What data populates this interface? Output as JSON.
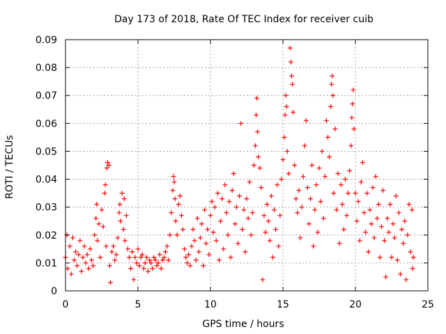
{
  "chart_data": {
    "type": "scatter",
    "title": "Day 173 of 2018, Rate Of TEC Index for receiver cuib",
    "xlabel": "GPS time / hours",
    "ylabel": "ROTI / TECUs",
    "xlim": [
      0,
      25
    ],
    "ylim": [
      0,
      0.09
    ],
    "xticks": [
      0,
      5,
      10,
      15,
      20,
      25
    ],
    "yticks": [
      0,
      0.01,
      0.02,
      0.03,
      0.04,
      0.05,
      0.06,
      0.07,
      0.08,
      0.09
    ],
    "xtick_labels": [
      "0",
      "5",
      "10",
      "15",
      "20",
      "25"
    ],
    "ytick_labels": [
      "0",
      "0.01",
      "0.02",
      "0.03",
      "0.04",
      "0.05",
      "0.06",
      "0.07",
      "0.08",
      "0.09"
    ],
    "grid": true,
    "marker": "+",
    "series": [
      {
        "name": "ROTI",
        "color": "#ff0000",
        "points": [
          [
            0.0,
            0.012
          ],
          [
            0.1,
            0.02
          ],
          [
            0.15,
            0.008
          ],
          [
            0.3,
            0.016
          ],
          [
            0.4,
            0.006
          ],
          [
            0.5,
            0.019
          ],
          [
            0.6,
            0.011
          ],
          [
            0.7,
            0.014
          ],
          [
            0.8,
            0.009
          ],
          [
            0.9,
            0.013
          ],
          [
            1.0,
            0.018
          ],
          [
            1.1,
            0.007
          ],
          [
            1.2,
            0.012
          ],
          [
            1.3,
            0.016
          ],
          [
            1.4,
            0.01
          ],
          [
            1.5,
            0.013
          ],
          [
            1.6,
            0.008
          ],
          [
            1.7,
            0.015
          ],
          [
            1.8,
            0.011
          ],
          [
            1.9,
            0.009
          ],
          [
            2.0,
            0.02
          ],
          [
            2.1,
            0.026
          ],
          [
            2.15,
            0.031
          ],
          [
            2.2,
            0.018
          ],
          [
            2.3,
            0.024
          ],
          [
            2.4,
            0.012
          ],
          [
            2.5,
            0.029
          ],
          [
            2.6,
            0.023
          ],
          [
            2.7,
            0.035
          ],
          [
            2.75,
            0.038
          ],
          [
            2.8,
            0.016
          ],
          [
            2.85,
            0.044
          ],
          [
            2.9,
            0.046
          ],
          [
            3.0,
            0.045
          ],
          [
            3.05,
            0.009
          ],
          [
            3.1,
            0.003
          ],
          [
            3.2,
            0.014
          ],
          [
            3.3,
            0.016
          ],
          [
            3.4,
            0.011
          ],
          [
            3.5,
            0.013
          ],
          [
            3.6,
            0.019
          ],
          [
            3.7,
            0.028
          ],
          [
            3.75,
            0.031
          ],
          [
            3.8,
            0.025
          ],
          [
            3.9,
            0.035
          ],
          [
            4.0,
            0.022
          ],
          [
            4.05,
            0.033
          ],
          [
            4.1,
            0.018
          ],
          [
            4.2,
            0.027
          ],
          [
            4.3,
            0.015
          ],
          [
            4.4,
            0.012
          ],
          [
            4.5,
            0.008
          ],
          [
            4.6,
            0.014
          ],
          [
            4.7,
            0.004
          ],
          [
            4.8,
            0.012
          ],
          [
            4.9,
            0.01
          ],
          [
            5.0,
            0.015
          ],
          [
            5.1,
            0.009
          ],
          [
            5.2,
            0.012
          ],
          [
            5.3,
            0.013
          ],
          [
            5.4,
            0.008
          ],
          [
            5.5,
            0.01
          ],
          [
            5.6,
            0.012
          ],
          [
            5.7,
            0.007
          ],
          [
            5.8,
            0.011
          ],
          [
            5.9,
            0.01
          ],
          [
            6.0,
            0.008
          ],
          [
            6.1,
            0.012
          ],
          [
            6.2,
            0.011
          ],
          [
            6.3,
            0.009
          ],
          [
            6.4,
            0.01
          ],
          [
            6.5,
            0.013
          ],
          [
            6.6,
            0.008
          ],
          [
            6.7,
            0.011
          ],
          [
            6.8,
            0.012
          ],
          [
            6.9,
            0.014
          ],
          [
            7.0,
            0.016
          ],
          [
            7.1,
            0.011
          ],
          [
            7.2,
            0.02
          ],
          [
            7.3,
            0.028
          ],
          [
            7.4,
            0.036
          ],
          [
            7.45,
            0.041
          ],
          [
            7.5,
            0.039
          ],
          [
            7.55,
            0.033
          ],
          [
            7.6,
            0.025
          ],
          [
            7.7,
            0.02
          ],
          [
            7.8,
            0.031
          ],
          [
            7.9,
            0.034
          ],
          [
            8.0,
            0.027
          ],
          [
            8.1,
            0.022
          ],
          [
            8.2,
            0.015
          ],
          [
            8.3,
            0.012
          ],
          [
            8.4,
            0.01
          ],
          [
            8.5,
            0.013
          ],
          [
            8.6,
            0.009
          ],
          [
            8.7,
            0.016
          ],
          [
            8.8,
            0.022
          ],
          [
            8.9,
            0.018
          ],
          [
            9.0,
            0.011
          ],
          [
            9.1,
            0.026
          ],
          [
            9.2,
            0.014
          ],
          [
            9.3,
            0.019
          ],
          [
            9.4,
            0.024
          ],
          [
            9.5,
            0.009
          ],
          [
            9.6,
            0.029
          ],
          [
            9.7,
            0.017
          ],
          [
            9.8,
            0.022
          ],
          [
            9.9,
            0.013
          ],
          [
            10.0,
            0.027
          ],
          [
            10.1,
            0.032
          ],
          [
            10.2,
            0.021
          ],
          [
            10.3,
            0.03
          ],
          [
            10.4,
            0.018
          ],
          [
            10.5,
            0.035
          ],
          [
            10.6,
            0.011
          ],
          [
            10.7,
            0.025
          ],
          [
            10.8,
            0.033
          ],
          [
            10.9,
            0.015
          ],
          [
            11.0,
            0.038
          ],
          [
            11.1,
            0.028
          ],
          [
            11.2,
            0.02
          ],
          [
            11.3,
            0.032
          ],
          [
            11.4,
            0.012
          ],
          [
            11.5,
            0.036
          ],
          [
            11.6,
            0.042
          ],
          [
            11.7,
            0.024
          ],
          [
            11.8,
            0.03
          ],
          [
            11.9,
            0.017
          ],
          [
            12.0,
            0.034
          ],
          [
            12.1,
            0.06
          ],
          [
            12.2,
            0.022
          ],
          [
            12.3,
            0.029
          ],
          [
            12.4,
            0.014
          ],
          [
            12.5,
            0.033
          ],
          [
            12.6,
            0.026
          ],
          [
            12.7,
            0.039
          ],
          [
            12.8,
            0.02
          ],
          [
            12.9,
            0.028
          ],
          [
            13.0,
            0.045
          ],
          [
            13.1,
            0.052
          ],
          [
            13.15,
            0.063
          ],
          [
            13.2,
            0.069
          ],
          [
            13.25,
            0.057
          ],
          [
            13.3,
            0.048
          ],
          [
            13.4,
            0.044
          ],
          [
            13.5,
            0.037
          ],
          [
            13.6,
            0.004
          ],
          [
            13.7,
            0.027
          ],
          [
            13.8,
            0.021
          ],
          [
            13.9,
            0.031
          ],
          [
            14.0,
            0.025
          ],
          [
            14.1,
            0.018
          ],
          [
            14.2,
            0.034
          ],
          [
            14.3,
            0.012
          ],
          [
            14.4,
            0.029
          ],
          [
            14.5,
            0.022
          ],
          [
            14.6,
            0.038
          ],
          [
            14.7,
            0.016
          ],
          [
            14.8,
            0.027
          ],
          [
            14.9,
            0.04
          ],
          [
            15.0,
            0.047
          ],
          [
            15.1,
            0.055
          ],
          [
            15.15,
            0.063
          ],
          [
            15.2,
            0.07
          ],
          [
            15.25,
            0.066
          ],
          [
            15.3,
            0.05
          ],
          [
            15.4,
            0.042
          ],
          [
            15.5,
            0.087
          ],
          [
            15.55,
            0.082
          ],
          [
            15.6,
            0.077
          ],
          [
            15.65,
            0.074
          ],
          [
            15.7,
            0.064
          ],
          [
            15.8,
            0.045
          ],
          [
            15.9,
            0.033
          ],
          [
            16.0,
            0.028
          ],
          [
            16.1,
            0.036
          ],
          [
            16.2,
            0.019
          ],
          [
            16.3,
            0.03
          ],
          [
            16.4,
            0.041
          ],
          [
            16.5,
            0.052
          ],
          [
            16.6,
            0.061
          ],
          [
            16.7,
            0.037
          ],
          [
            16.8,
            0.024
          ],
          [
            16.9,
            0.033
          ],
          [
            17.0,
            0.045
          ],
          [
            17.1,
            0.016
          ],
          [
            17.2,
            0.029
          ],
          [
            17.3,
            0.038
          ],
          [
            17.4,
            0.021
          ],
          [
            17.5,
            0.044
          ],
          [
            17.6,
            0.032
          ],
          [
            17.7,
            0.05
          ],
          [
            17.8,
            0.026
          ],
          [
            17.9,
            0.041
          ],
          [
            18.0,
            0.061
          ],
          [
            18.1,
            0.055
          ],
          [
            18.2,
            0.048
          ],
          [
            18.3,
            0.066
          ],
          [
            18.35,
            0.074
          ],
          [
            18.4,
            0.077
          ],
          [
            18.45,
            0.07
          ],
          [
            18.5,
            0.035
          ],
          [
            18.6,
            0.058
          ],
          [
            18.7,
            0.029
          ],
          [
            18.8,
            0.042
          ],
          [
            18.9,
            0.017
          ],
          [
            19.0,
            0.038
          ],
          [
            19.1,
            0.031
          ],
          [
            19.2,
            0.022
          ],
          [
            19.3,
            0.04
          ],
          [
            19.4,
            0.027
          ],
          [
            19.5,
            0.035
          ],
          [
            19.6,
            0.043
          ],
          [
            19.7,
            0.052
          ],
          [
            19.75,
            0.062
          ],
          [
            19.8,
            0.067
          ],
          [
            19.85,
            0.072
          ],
          [
            19.9,
            0.058
          ],
          [
            20.0,
            0.035
          ],
          [
            20.1,
            0.025
          ],
          [
            20.2,
            0.032
          ],
          [
            20.3,
            0.018
          ],
          [
            20.4,
            0.039
          ],
          [
            20.5,
            0.046
          ],
          [
            20.6,
            0.028
          ],
          [
            20.7,
            0.021
          ],
          [
            20.8,
            0.035
          ],
          [
            20.9,
            0.014
          ],
          [
            21.0,
            0.029
          ],
          [
            21.1,
            0.024
          ],
          [
            21.2,
            0.037
          ],
          [
            21.3,
            0.019
          ],
          [
            21.4,
            0.041
          ],
          [
            21.5,
            0.026
          ],
          [
            21.6,
            0.031
          ],
          [
            21.7,
            0.012
          ],
          [
            21.8,
            0.023
          ],
          [
            21.9,
            0.036
          ],
          [
            22.0,
            0.018
          ],
          [
            22.1,
            0.005
          ],
          [
            22.2,
            0.026
          ],
          [
            22.3,
            0.021
          ],
          [
            22.4,
            0.031
          ],
          [
            22.5,
            0.012
          ],
          [
            22.6,
            0.024
          ],
          [
            22.7,
            0.019
          ],
          [
            22.8,
            0.034
          ],
          [
            22.9,
            0.011
          ],
          [
            23.0,
            0.028
          ],
          [
            23.1,
            0.006
          ],
          [
            23.2,
            0.022
          ],
          [
            23.3,
            0.017
          ],
          [
            23.4,
            0.025
          ],
          [
            23.5,
            0.004
          ],
          [
            23.6,
            0.02
          ],
          [
            23.7,
            0.031
          ],
          [
            23.8,
            0.014
          ],
          [
            23.9,
            0.029
          ],
          [
            23.95,
            0.008
          ],
          [
            24.0,
            0.012
          ]
        ]
      }
    ]
  }
}
